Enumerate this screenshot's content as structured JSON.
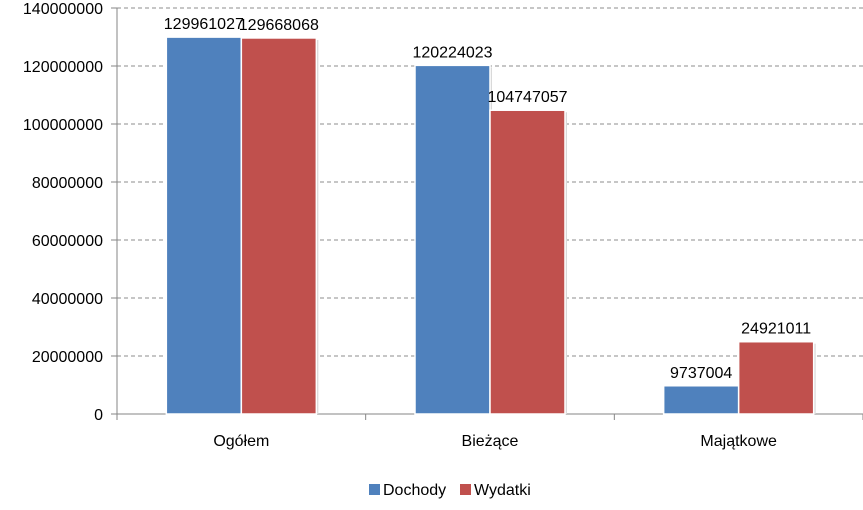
{
  "chart_data": {
    "type": "bar",
    "title": "",
    "xlabel": "",
    "ylabel": "",
    "categories": [
      "Ogółem",
      "Bieżące",
      "Majątkowe"
    ],
    "series": [
      {
        "name": "Dochody",
        "color": "#4F81BD",
        "values": [
          129961027,
          120224023,
          9737004
        ]
      },
      {
        "name": "Wydatki",
        "color": "#C0504D",
        "values": [
          129668068,
          104747057,
          24921011
        ]
      }
    ],
    "data_labels": [
      [
        "129961027",
        "120224023",
        "9737004"
      ],
      [
        "129668068",
        "104747057",
        "24921011"
      ]
    ],
    "ylim": [
      0,
      140000000
    ],
    "yticks": [
      "0",
      "20000000",
      "40000000",
      "60000000",
      "80000000",
      "100000000",
      "120000000",
      "140000000"
    ],
    "grid": true,
    "grid_style": "dashed",
    "legend_position": "bottom"
  }
}
